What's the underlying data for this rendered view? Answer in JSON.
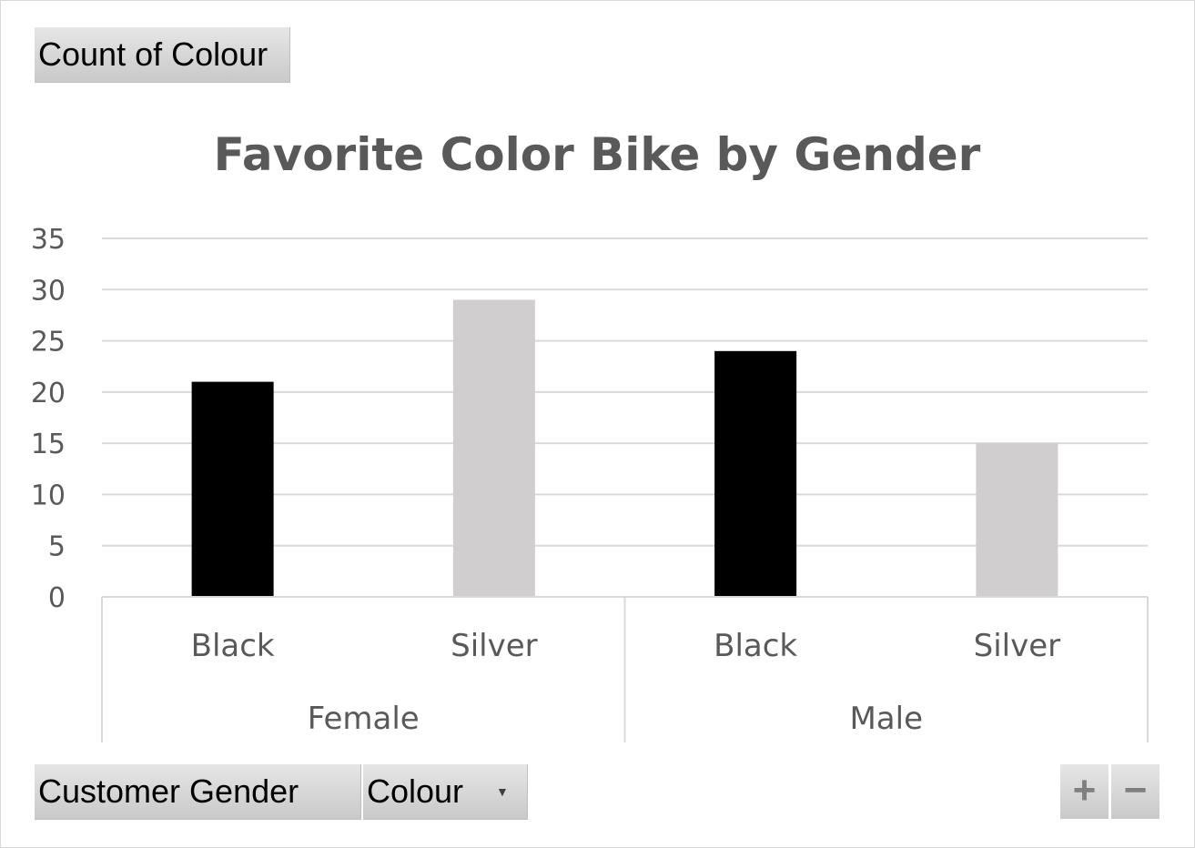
{
  "field_buttons": {
    "value_field": "Count of Colour",
    "row_fields": [
      "Customer Gender",
      "Colour"
    ],
    "expand_label": "+",
    "collapse_label": "−"
  },
  "chart_data": {
    "type": "bar",
    "title": "Favorite Color Bike by Gender",
    "xlabel": "",
    "ylabel": "",
    "ylim": [
      0,
      35
    ],
    "yticks": [
      0,
      5,
      10,
      15,
      20,
      25,
      30,
      35
    ],
    "grid": true,
    "legend": "none",
    "groups": [
      {
        "name": "Female",
        "categories": [
          "Black",
          "Silver"
        ],
        "values": [
          21,
          29
        ],
        "colors": [
          "#000000",
          "#d0cece"
        ]
      },
      {
        "name": "Male",
        "categories": [
          "Black",
          "Silver"
        ],
        "values": [
          24,
          15
        ],
        "colors": [
          "#000000",
          "#d0cece"
        ]
      }
    ]
  }
}
